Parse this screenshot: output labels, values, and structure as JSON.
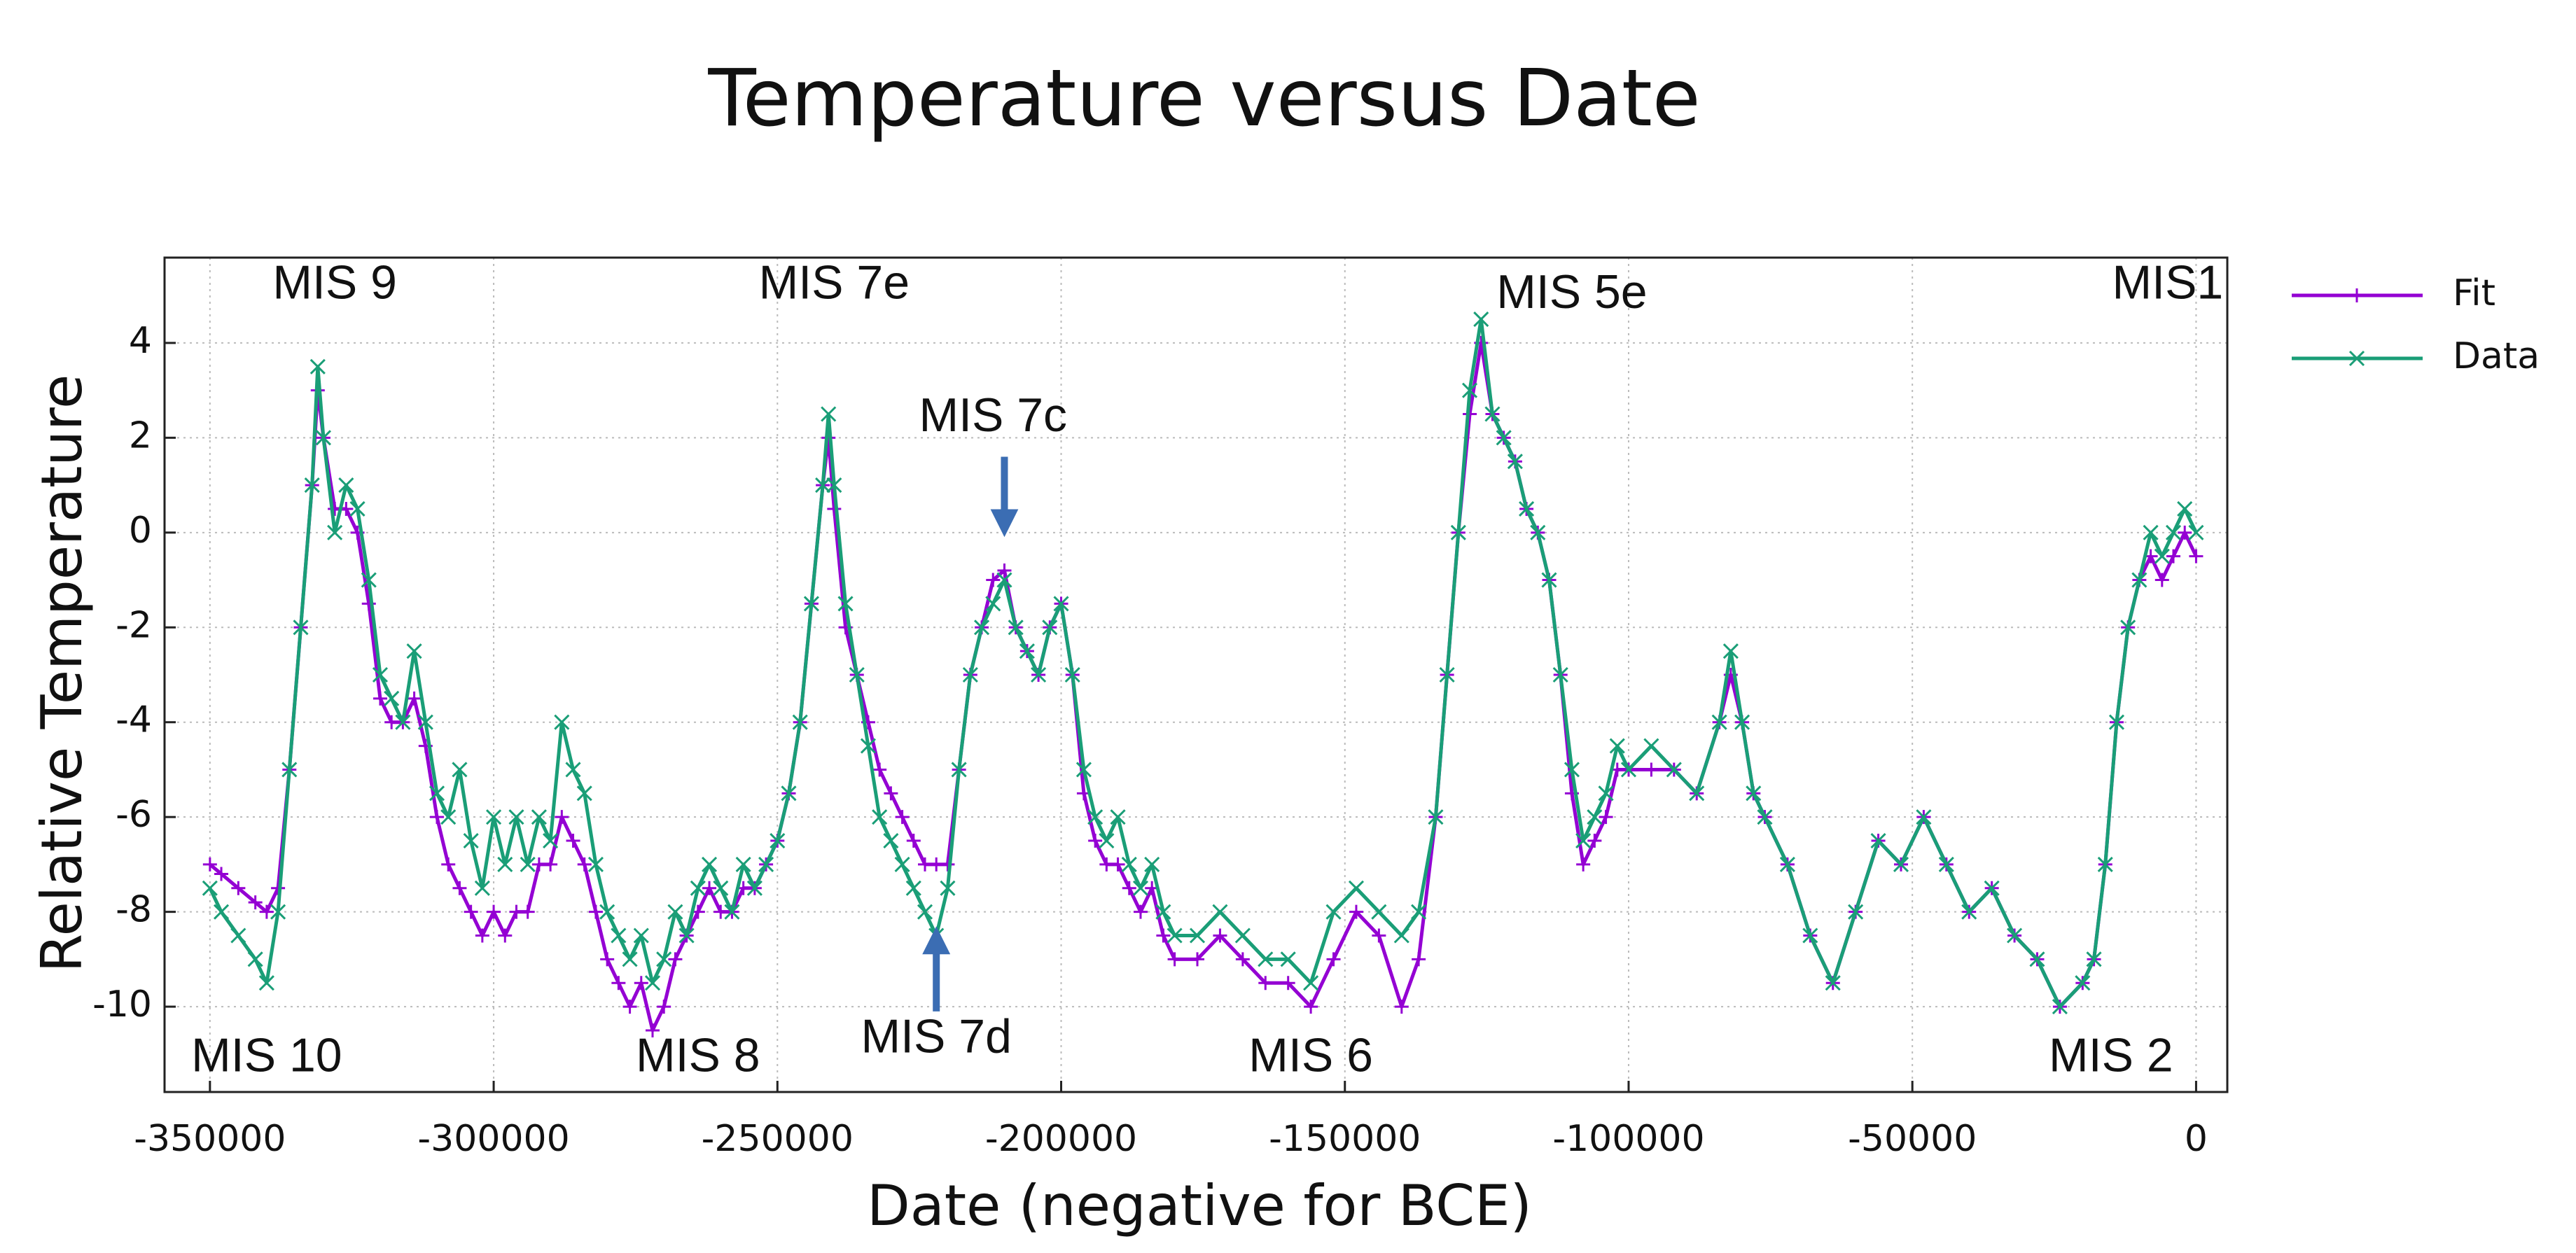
{
  "chart_data": {
    "type": "line",
    "title": "Temperature versus Date",
    "x_label": "Date (negative for BCE)",
    "y_label": "Relative Temperature",
    "x": [
      -350000,
      -348000,
      -345000,
      -342000,
      -340000,
      -338000,
      -336000,
      -334000,
      -332000,
      -331000,
      -330000,
      -328000,
      -326000,
      -324000,
      -322000,
      -320000,
      -318000,
      -316000,
      -314000,
      -312000,
      -310000,
      -308000,
      -306000,
      -304000,
      -302000,
      -300000,
      -298000,
      -296000,
      -294000,
      -292000,
      -290000,
      -288000,
      -286000,
      -284000,
      -282000,
      -280000,
      -278000,
      -276000,
      -274000,
      -272000,
      -270000,
      -268000,
      -266000,
      -264000,
      -262000,
      -260000,
      -258000,
      -256000,
      -254000,
      -252000,
      -250000,
      -248000,
      -246000,
      -244000,
      -242000,
      -241000,
      -240000,
      -238000,
      -236000,
      -234000,
      -232000,
      -230000,
      -228000,
      -226000,
      -224000,
      -222000,
      -220000,
      -218000,
      -216000,
      -214000,
      -212000,
      -210000,
      -208000,
      -206000,
      -204000,
      -202000,
      -200000,
      -198000,
      -196000,
      -194000,
      -192000,
      -190000,
      -188000,
      -186000,
      -184000,
      -182000,
      -180000,
      -176000,
      -172000,
      -168000,
      -164000,
      -160000,
      -156000,
      -152000,
      -148000,
      -144000,
      -140000,
      -137000,
      -134000,
      -132000,
      -130000,
      -128000,
      -126000,
      -124000,
      -122000,
      -120000,
      -118000,
      -116000,
      -114000,
      -112000,
      -110000,
      -108000,
      -106000,
      -104000,
      -102000,
      -100000,
      -96000,
      -92000,
      -88000,
      -84000,
      -82000,
      -80000,
      -78000,
      -76000,
      -72000,
      -68000,
      -64000,
      -60000,
      -56000,
      -52000,
      -48000,
      -44000,
      -40000,
      -36000,
      -32000,
      -28000,
      -24000,
      -20000,
      -18000,
      -16000,
      -14000,
      -12000,
      -10000,
      -8000,
      -6000,
      -4000,
      -2000,
      0
    ],
    "series": [
      {
        "name": "Fit",
        "color": "#9400d3",
        "marker": "+",
        "values": [
          -7,
          -7.2,
          -7.5,
          -7.8,
          -8,
          -7.5,
          -5,
          -2,
          1,
          3,
          2,
          0.5,
          0.5,
          0,
          -1.5,
          -3.5,
          -4,
          -4,
          -3.5,
          -4.5,
          -6,
          -7,
          -7.5,
          -8,
          -8.5,
          -8,
          -8.5,
          -8,
          -8,
          -7,
          -7,
          -6,
          -6.5,
          -7,
          -8,
          -9,
          -9.5,
          -10,
          -9.5,
          -10.5,
          -10,
          -9,
          -8.5,
          -8,
          -7.5,
          -8,
          -8,
          -7.5,
          -7.5,
          -7,
          -6.5,
          -5.5,
          -4,
          -1.5,
          1,
          2,
          0.5,
          -2,
          -3,
          -4,
          -5,
          -5.5,
          -6,
          -6.5,
          -7,
          -7,
          -7,
          -5,
          -3,
          -2,
          -1,
          -0.8,
          -2,
          -2.5,
          -3,
          -2,
          -1.5,
          -3,
          -5.5,
          -6.5,
          -7,
          -7,
          -7.5,
          -8,
          -7.5,
          -8.5,
          -9,
          -9,
          -8.5,
          -9,
          -9.5,
          -9.5,
          -10,
          -9,
          -8,
          -8.5,
          -10,
          -9,
          -6,
          -3,
          0,
          2.5,
          4,
          2.5,
          2,
          1.5,
          0.5,
          0,
          -1,
          -3,
          -5.5,
          -7,
          -6.5,
          -6,
          -5,
          -5,
          -5,
          -5,
          -5.5,
          -4,
          -3,
          -4,
          -5.5,
          -6,
          -7,
          -8.5,
          -9.5,
          -8,
          -6.5,
          -7,
          -6,
          -7,
          -8,
          -7.5,
          -8.5,
          -9,
          -10,
          -9.5,
          -9,
          -7,
          -4,
          -2,
          -1,
          -0.5,
          -1,
          -0.5,
          0,
          -0.5
        ]
      },
      {
        "name": "Data",
        "color": "#1a9e77",
        "marker": "x",
        "values": [
          -7.5,
          -8,
          -8.5,
          -9,
          -9.5,
          -8,
          -5,
          -2,
          1,
          3.5,
          2,
          0,
          1,
          0.5,
          -1,
          -3,
          -3.5,
          -4,
          -2.5,
          -4,
          -5.5,
          -6,
          -5,
          -6.5,
          -7.5,
          -6,
          -7,
          -6,
          -7,
          -6,
          -6.5,
          -4,
          -5,
          -5.5,
          -7,
          -8,
          -8.5,
          -9,
          -8.5,
          -9.5,
          -9,
          -8,
          -8.5,
          -7.5,
          -7,
          -7.5,
          -8,
          -7,
          -7.5,
          -7,
          -6.5,
          -5.5,
          -4,
          -1.5,
          1,
          2.5,
          1,
          -1.5,
          -3,
          -4.5,
          -6,
          -6.5,
          -7,
          -7.5,
          -8,
          -8.5,
          -7.5,
          -5,
          -3,
          -2,
          -1.5,
          -1,
          -2,
          -2.5,
          -3,
          -2,
          -1.5,
          -3,
          -5,
          -6,
          -6.5,
          -6,
          -7,
          -7.5,
          -7,
          -8,
          -8.5,
          -8.5,
          -8,
          -8.5,
          -9,
          -9,
          -9.5,
          -8,
          -7.5,
          -8,
          -8.5,
          -8,
          -6,
          -3,
          0,
          3,
          4.5,
          2.5,
          2,
          1.5,
          0.5,
          0,
          -1,
          -3,
          -5,
          -6.5,
          -6,
          -5.5,
          -4.5,
          -5,
          -4.5,
          -5,
          -5.5,
          -4,
          -2.5,
          -4,
          -5.5,
          -6,
          -7,
          -8.5,
          -9.5,
          -8,
          -6.5,
          -7,
          -6,
          -7,
          -8,
          -7.5,
          -8.5,
          -9,
          -10,
          -9.5,
          -9,
          -7,
          -4,
          -2,
          -1,
          0,
          -0.5,
          0,
          0.5,
          0
        ]
      }
    ],
    "xlim": [
      -358000,
      5500
    ],
    "ylim": [
      -11.8,
      5.8
    ],
    "xticks": [
      -350000,
      -300000,
      -250000,
      -200000,
      -150000,
      -100000,
      -50000,
      0
    ],
    "yticks": [
      -10,
      -8,
      -6,
      -4,
      -2,
      0,
      2,
      4
    ],
    "grid": true,
    "legend": "outside-right",
    "annotations": [
      "MIS 9",
      "MIS 7e",
      "MIS 5e",
      "MIS1",
      "MIS 7c",
      "MIS 7d",
      "MIS 10",
      "MIS 8",
      "MIS 6",
      "MIS 2"
    ]
  }
}
